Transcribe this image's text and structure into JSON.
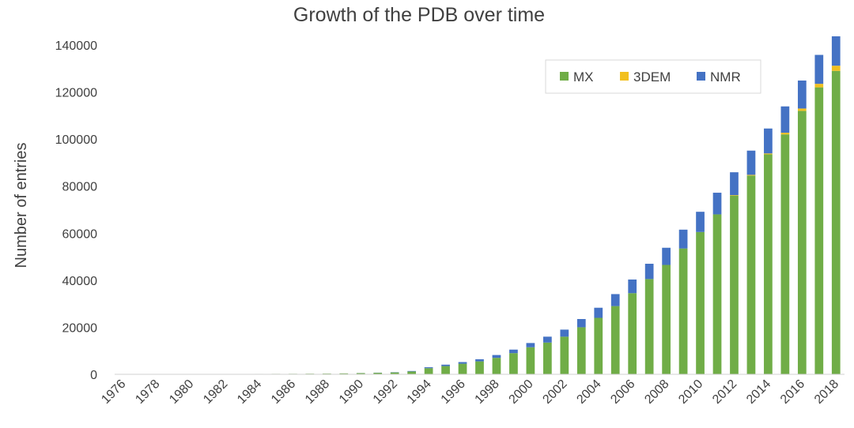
{
  "chart_data": {
    "type": "bar",
    "stacked": true,
    "title": "Growth of the PDB over time",
    "xlabel": "",
    "ylabel": "Number of entries",
    "ylim": [
      0,
      140000
    ],
    "yticks": [
      0,
      20000,
      40000,
      60000,
      80000,
      100000,
      120000,
      140000
    ],
    "xtick_labels": [
      "1976",
      "1978",
      "1980",
      "1982",
      "1984",
      "1986",
      "1988",
      "1990",
      "1992",
      "1994",
      "1996",
      "1998",
      "2000",
      "2002",
      "2004",
      "2006",
      "2008",
      "2010",
      "2012",
      "2014",
      "2016",
      "2018"
    ],
    "legend_position": "top-right",
    "grid": false,
    "categories": [
      "1976",
      "1977",
      "1978",
      "1979",
      "1980",
      "1981",
      "1982",
      "1983",
      "1984",
      "1985",
      "1986",
      "1987",
      "1988",
      "1989",
      "1990",
      "1991",
      "1992",
      "1993",
      "1994",
      "1995",
      "1996",
      "1997",
      "1998",
      "1999",
      "2000",
      "2001",
      "2002",
      "2003",
      "2004",
      "2005",
      "2006",
      "2007",
      "2008",
      "2009",
      "2010",
      "2011",
      "2012",
      "2013",
      "2014",
      "2015",
      "2016",
      "2017",
      "2018"
    ],
    "series": [
      {
        "name": "MX",
        "color": "#70ad47",
        "values": [
          13,
          23,
          36,
          58,
          69,
          87,
          120,
          150,
          176,
          197,
          220,
          270,
          310,
          380,
          500,
          640,
          800,
          1200,
          2600,
          3500,
          4500,
          5500,
          7000,
          9000,
          11500,
          13500,
          16000,
          20000,
          24000,
          29000,
          34500,
          40500,
          46500,
          53500,
          60500,
          68000,
          76000,
          84500,
          93500,
          102000,
          112000,
          122000,
          129000
        ]
      },
      {
        "name": "3DEM",
        "color": "#f2c01f",
        "values": [
          0,
          0,
          0,
          0,
          0,
          0,
          0,
          0,
          0,
          0,
          0,
          0,
          0,
          0,
          0,
          0,
          0,
          0,
          0,
          0,
          0,
          0,
          0,
          0,
          0,
          0,
          0,
          0,
          0,
          0,
          0,
          0,
          0,
          0,
          0,
          0,
          200,
          300,
          400,
          700,
          1000,
          1500,
          2200
        ]
      },
      {
        "name": "NMR",
        "color": "#4472c4",
        "values": [
          0,
          0,
          0,
          0,
          0,
          0,
          0,
          0,
          0,
          0,
          0,
          0,
          5,
          10,
          30,
          60,
          100,
          200,
          400,
          600,
          700,
          900,
          1200,
          1500,
          1800,
          2500,
          3000,
          3500,
          4300,
          5100,
          5800,
          6500,
          7300,
          8000,
          8600,
          9200,
          9700,
          10300,
          10600,
          11200,
          11900,
          12300,
          12500
        ]
      }
    ]
  }
}
